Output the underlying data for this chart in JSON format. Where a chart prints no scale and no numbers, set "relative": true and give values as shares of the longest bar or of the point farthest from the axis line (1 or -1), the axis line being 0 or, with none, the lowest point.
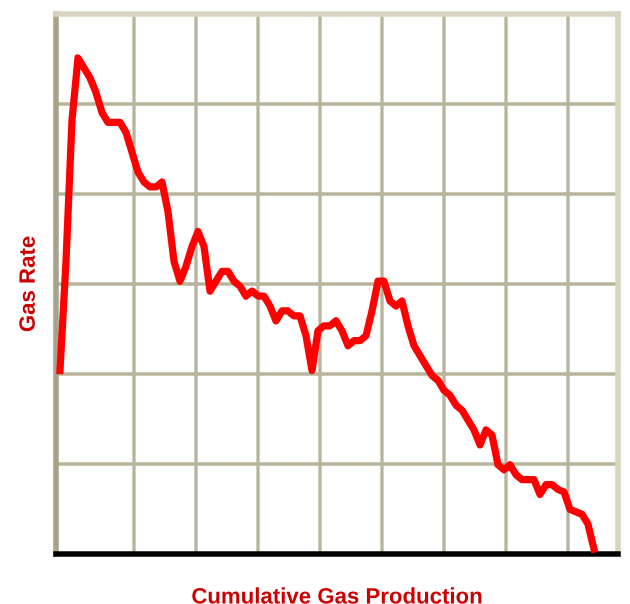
{
  "chart_data": {
    "type": "line",
    "relative": true,
    "xlabel": "Cumulative Gas Production",
    "ylabel": "Gas Rate",
    "grid": true,
    "categories": [
      null,
      null,
      null,
      null,
      null,
      null,
      null,
      null,
      null,
      null,
      null,
      null,
      null,
      null,
      null,
      null,
      null,
      null,
      null,
      null,
      null,
      null,
      null,
      null,
      null,
      null,
      null,
      null,
      null,
      null,
      null,
      null,
      null,
      null,
      null,
      null,
      null,
      null,
      null,
      null,
      null,
      null,
      null,
      null,
      null,
      null,
      null,
      null,
      null,
      null,
      null,
      null,
      null,
      null,
      null,
      null,
      null,
      null,
      null,
      null,
      null,
      null,
      null,
      null,
      null,
      null,
      null,
      null,
      null,
      null,
      null,
      null,
      null,
      null,
      null,
      null,
      null,
      null,
      null,
      null,
      null,
      null,
      null,
      null,
      null,
      null,
      null,
      null,
      null,
      null
    ],
    "series": [
      {
        "color": "#ff0000",
        "values": [
          0.37,
          0.59,
          0.875,
          1.0,
          0.98,
          0.96,
          0.93,
          0.89,
          0.87,
          0.87,
          0.87,
          0.85,
          0.81,
          0.77,
          0.75,
          0.74,
          0.74,
          0.75,
          0.69,
          0.59,
          0.55,
          0.58,
          0.62,
          0.65,
          0.62,
          0.53,
          0.55,
          0.57,
          0.57,
          0.55,
          0.54,
          0.52,
          0.53,
          0.52,
          0.52,
          0.5,
          0.47,
          0.49,
          0.49,
          0.48,
          0.48,
          0.44,
          0.37,
          0.45,
          0.46,
          0.46,
          0.47,
          0.45,
          0.42,
          0.43,
          0.43,
          0.44,
          0.49,
          0.55,
          0.55,
          0.51,
          0.5,
          0.51,
          0.46,
          0.42,
          0.4,
          0.38,
          0.36,
          0.35,
          0.33,
          0.32,
          0.3,
          0.29,
          0.27,
          0.25,
          0.22,
          0.25,
          0.24,
          0.18,
          0.17,
          0.18,
          0.16,
          0.15,
          0.15,
          0.15,
          0.12,
          0.14,
          0.14,
          0.13,
          0.125,
          0.09,
          0.085,
          0.08,
          0.06,
          0.01
        ]
      }
    ]
  }
}
